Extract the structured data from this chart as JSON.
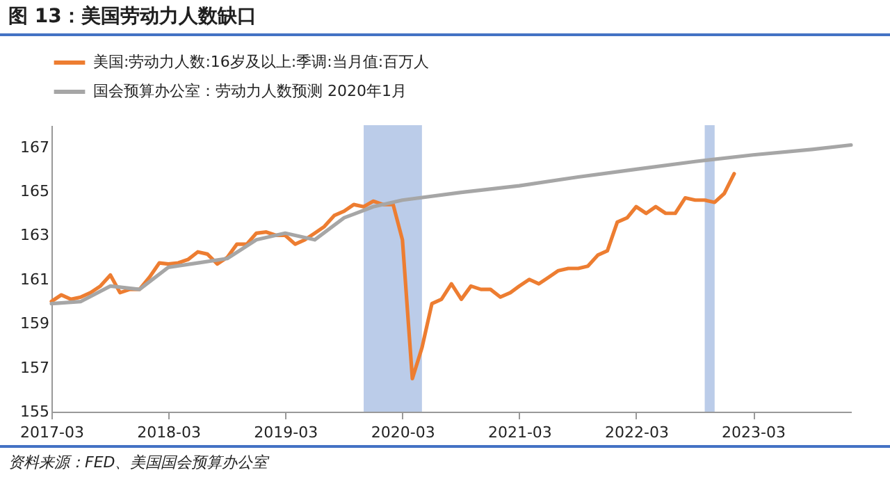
{
  "chart_data": {
    "type": "line",
    "title": "图 13：美国劳动力人数缺口",
    "annotations": [
      "资料来源：FED、美国国会预算办公室"
    ],
    "xlim": [
      "2017-03",
      "2024-01"
    ],
    "xticks": [
      "2017-03",
      "2018-03",
      "2019-03",
      "2020-03",
      "2021-03",
      "2022-03",
      "2023-03"
    ],
    "ylim": [
      155,
      168
    ],
    "yticks": [
      155,
      157,
      159,
      161,
      163,
      165,
      167
    ],
    "grid": false,
    "legend": "top",
    "marker": "none",
    "line_style": "solid",
    "bands": [
      {
        "axis": "x",
        "from": "2019-11",
        "to": "2020-05",
        "color": "#b4c7e7"
      },
      {
        "axis": "x",
        "from": "2022-10",
        "to": "2022-11",
        "color": "#b4c7e7"
      }
    ],
    "series": [
      {
        "name": "美国:劳动力人数:16岁及以上:季调:当月值:百万人",
        "color": "#ed7d31",
        "x": [
          "2017-03",
          "2017-04",
          "2017-05",
          "2017-06",
          "2017-07",
          "2017-08",
          "2017-09",
          "2017-10",
          "2017-11",
          "2017-12",
          "2018-01",
          "2018-02",
          "2018-03",
          "2018-04",
          "2018-05",
          "2018-06",
          "2018-07",
          "2018-08",
          "2018-09",
          "2018-10",
          "2018-11",
          "2018-12",
          "2019-01",
          "2019-02",
          "2019-03",
          "2019-04",
          "2019-05",
          "2019-06",
          "2019-07",
          "2019-08",
          "2019-09",
          "2019-10",
          "2019-11",
          "2019-12",
          "2020-01",
          "2020-02",
          "2020-03",
          "2020-04",
          "2020-05",
          "2020-06",
          "2020-07",
          "2020-08",
          "2020-09",
          "2020-10",
          "2020-11",
          "2020-12",
          "2021-01",
          "2021-02",
          "2021-03",
          "2021-04",
          "2021-05",
          "2021-06",
          "2021-07",
          "2021-08",
          "2021-09",
          "2021-10",
          "2021-11",
          "2021-12",
          "2022-01",
          "2022-02",
          "2022-03",
          "2022-04",
          "2022-05",
          "2022-06",
          "2022-07",
          "2022-08",
          "2022-09",
          "2022-10",
          "2022-11",
          "2022-12",
          "2023-01"
        ],
        "values": [
          160.0,
          160.3,
          160.1,
          160.2,
          160.4,
          160.7,
          161.2,
          160.4,
          160.55,
          160.55,
          161.1,
          161.75,
          161.7,
          161.75,
          161.9,
          162.25,
          162.15,
          161.7,
          162.0,
          162.6,
          162.6,
          163.1,
          163.15,
          163.0,
          163.0,
          162.6,
          162.8,
          163.1,
          163.4,
          163.9,
          164.1,
          164.4,
          164.3,
          164.55,
          164.4,
          164.4,
          162.8,
          156.5,
          157.9,
          159.9,
          160.1,
          160.8,
          160.1,
          160.7,
          160.55,
          160.55,
          160.2,
          160.4,
          160.7,
          161.0,
          160.8,
          161.1,
          161.4,
          161.5,
          161.5,
          161.6,
          162.1,
          162.3,
          163.6,
          163.8,
          164.3,
          164.0,
          164.3,
          164.0,
          164.0,
          164.7,
          164.6,
          164.6,
          164.5,
          164.9,
          165.8
        ]
      },
      {
        "name": "国会预算办公室：劳动力人数预测 2020年1月",
        "color": "#a6a6a6",
        "x": [
          "2017-03",
          "2017-06",
          "2017-09",
          "2017-12",
          "2018-03",
          "2018-06",
          "2018-09",
          "2018-12",
          "2019-03",
          "2019-06",
          "2019-09",
          "2019-12",
          "2020-03",
          "2020-09",
          "2021-03",
          "2021-09",
          "2022-03",
          "2022-09",
          "2023-03",
          "2023-09",
          "2024-01"
        ],
        "values": [
          159.9,
          160.0,
          160.7,
          160.55,
          161.55,
          161.75,
          161.95,
          162.8,
          163.1,
          162.8,
          163.8,
          164.3,
          164.6,
          164.95,
          165.25,
          165.65,
          166.0,
          166.35,
          166.65,
          166.9,
          167.1
        ]
      }
    ]
  }
}
